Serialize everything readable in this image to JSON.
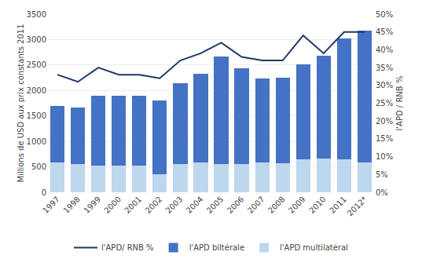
{
  "chart_data": {
    "type": "bar",
    "stacked": true,
    "categories": [
      "1997",
      "1998",
      "1999",
      "2000",
      "2001",
      "2002",
      "2003",
      "2004",
      "2005",
      "2006",
      "2007",
      "2008",
      "2009",
      "2010",
      "2011",
      "2012*"
    ],
    "series": [
      {
        "name": "l'APD multilatéral",
        "color": "#BDD7EE",
        "values": [
          580,
          560,
          520,
          530,
          530,
          360,
          560,
          580,
          560,
          560,
          580,
          570,
          650,
          660,
          640,
          590
        ]
      },
      {
        "name": "l'APD biltérale",
        "color": "#4472C4",
        "values": [
          1120,
          1100,
          1380,
          1370,
          1370,
          1440,
          1580,
          1750,
          2100,
          1870,
          1660,
          1680,
          1870,
          2030,
          2380,
          2580
        ]
      },
      {
        "name": "l'APD/ RNB %",
        "type": "line",
        "axis": "y2",
        "color": "#1F3864",
        "values": [
          33,
          31,
          35,
          33,
          33,
          32,
          37,
          39,
          42,
          38,
          37,
          37,
          44,
          39,
          45,
          45
        ]
      }
    ],
    "ylabel": "Millions de USD aux prix constants 2011",
    "y2label": "l'APD / RNB %",
    "ylim": [
      0,
      3500
    ],
    "yticks": [
      0,
      500,
      1000,
      1500,
      2000,
      2500,
      3000,
      3500
    ],
    "y2lim": [
      0,
      50
    ],
    "y2ticks": [
      {
        "value": 0,
        "label": "0%"
      },
      {
        "value": 5,
        "label": "5%"
      },
      {
        "value": 10,
        "label": "10%"
      },
      {
        "value": 15,
        "label": "15%"
      },
      {
        "value": 20,
        "label": "20%"
      },
      {
        "value": 25,
        "label": "25%"
      },
      {
        "value": 30,
        "label": "30%"
      },
      {
        "value": 35,
        "label": "35%"
      },
      {
        "value": 40,
        "label": "40%"
      },
      {
        "value": 45,
        "label": "45%"
      },
      {
        "value": 50,
        "label": "50%"
      }
    ],
    "grid": true,
    "legend": "bottom"
  }
}
